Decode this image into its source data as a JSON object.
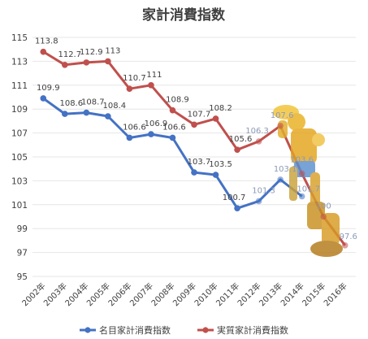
{
  "chart_data": {
    "type": "line",
    "title": "家計消費指数",
    "categories": [
      "2002年",
      "2003年",
      "2004年",
      "2005年",
      "2006年",
      "2007年",
      "2008年",
      "2009年",
      "2010年",
      "2011年",
      "2012年",
      "2013年",
      "2014年",
      "2015年",
      "2016年"
    ],
    "ylim": [
      95,
      115
    ],
    "yticks": [
      95,
      97,
      99,
      101,
      103,
      105,
      107,
      109,
      111,
      113,
      115
    ],
    "grid": true,
    "legend_position": "bottom",
    "series": [
      {
        "name": "名目家計消費指数",
        "color": "#4472c4",
        "values": [
          109.9,
          108.6,
          108.7,
          108.4,
          106.6,
          106.9,
          106.6,
          103.7,
          103.5,
          100.7,
          101.3,
          103.1,
          101.7,
          null,
          null
        ],
        "labels": [
          "109.9",
          "108.6",
          "108.7",
          "108.4",
          "106.6",
          "106.9",
          "106.6",
          "103.7",
          "103.5",
          "100.7",
          "101.3",
          "103.1",
          "101.7",
          "",
          ""
        ]
      },
      {
        "name": "実質家計消費指数",
        "color": "#c0504d",
        "values": [
          113.8,
          112.7,
          112.9,
          113,
          110.7,
          111,
          108.9,
          107.7,
          108.2,
          105.6,
          106.3,
          107.6,
          103.6,
          100,
          97.6
        ],
        "labels": [
          "113.8",
          "112.7",
          "112.9",
          "113",
          "110.7",
          "111",
          "108.9",
          "107.7",
          "108.2",
          "105.6",
          "106.3",
          "107.6",
          "103.6",
          "100",
          "97.6"
        ]
      }
    ]
  },
  "overlay": {
    "figure_icon": "golden-armored-robot-figure"
  }
}
